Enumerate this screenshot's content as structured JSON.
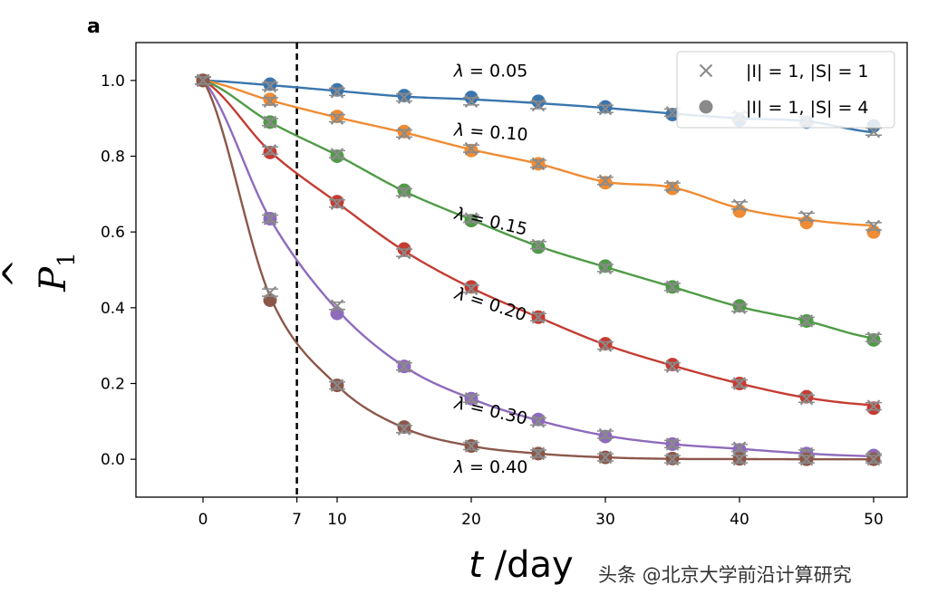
{
  "panel_label": "a",
  "watermark": "头条 @北京大学前沿计算研究",
  "chart_data": {
    "type": "line",
    "title": "",
    "xlabel": "t /day",
    "xlabel_var": "t",
    "xlabel_unit": " /day",
    "ylabel": "P̂1",
    "ylabel_main": "P",
    "ylabel_sub": "1",
    "xlim": [
      -5,
      52.5
    ],
    "ylim": [
      -0.1,
      1.1
    ],
    "xticks": [
      0,
      7,
      10,
      20,
      30,
      40,
      50
    ],
    "xtick_labels": [
      "0",
      "7",
      "10",
      "20",
      "30",
      "40",
      "50"
    ],
    "yticks": [
      0.0,
      0.2,
      0.4,
      0.6,
      0.8,
      1.0
    ],
    "ytick_labels": [
      "0.0",
      "0.2",
      "0.4",
      "0.6",
      "0.8",
      "1.0"
    ],
    "vline": {
      "x": 7,
      "style": "dashed"
    },
    "x_samples": [
      0,
      5,
      10,
      15,
      20,
      25,
      30,
      35,
      40,
      45,
      50
    ],
    "legend": {
      "placement": "top-right",
      "entries": [
        {
          "marker": "x",
          "label": "|I| = 1, |S| = 1"
        },
        {
          "marker": "circle",
          "label": "|I| = 1, |S| = 4"
        }
      ]
    },
    "series": [
      {
        "name": "λ = 0.05",
        "lambda": 0.05,
        "color": "#3a75ad",
        "line_end": 0.863,
        "circles": [
          1.0,
          0.99,
          0.975,
          0.96,
          0.955,
          0.945,
          0.93,
          0.91,
          0.895,
          0.89,
          0.88
        ],
        "crosses": [
          1.0,
          0.985,
          0.97,
          0.955,
          0.945,
          0.935,
          0.925,
          0.915,
          0.905,
          0.895,
          0.865
        ],
        "label_text": "λ = 0.05",
        "label_x": 18.7,
        "label_y": 1.01,
        "label_rotation": 0
      },
      {
        "name": "λ = 0.10",
        "lambda": 0.1,
        "color": "#ef8c34",
        "line_end": 0.617,
        "circles": [
          1.0,
          0.95,
          0.905,
          0.865,
          0.815,
          0.78,
          0.73,
          0.715,
          0.655,
          0.625,
          0.6
        ],
        "crosses": [
          1.0,
          0.945,
          0.9,
          0.86,
          0.82,
          0.78,
          0.735,
          0.72,
          0.67,
          0.64,
          0.615
        ],
        "label_text": "λ = 0.10",
        "label_x": 18.7,
        "label_y": 0.855,
        "label_rotation": 4
      },
      {
        "name": "λ = 0.15",
        "lambda": 0.15,
        "color": "#4f9b46",
        "line_end": 0.32,
        "circles": [
          1.0,
          0.89,
          0.8,
          0.71,
          0.63,
          0.56,
          0.51,
          0.455,
          0.405,
          0.365,
          0.315
        ],
        "crosses": [
          1.0,
          0.89,
          0.805,
          0.705,
          0.635,
          0.565,
          0.505,
          0.455,
          0.4,
          0.365,
          0.32
        ],
        "label_text": "λ = 0.15",
        "label_x": 18.7,
        "label_y": 0.635,
        "label_rotation": 13
      },
      {
        "name": "λ = 0.20",
        "lambda": 0.2,
        "color": "#c43c32",
        "line_end": 0.143,
        "circles": [
          1.0,
          0.81,
          0.68,
          0.555,
          0.455,
          0.375,
          0.305,
          0.25,
          0.2,
          0.165,
          0.135
        ],
        "crosses": [
          1.0,
          0.815,
          0.675,
          0.545,
          0.45,
          0.375,
          0.3,
          0.245,
          0.2,
          0.16,
          0.14
        ],
        "label_text": "λ = 0.20",
        "label_x": 18.7,
        "label_y": 0.425,
        "label_rotation": 18
      },
      {
        "name": "λ = 0.30",
        "lambda": 0.3,
        "color": "#8e6bbc",
        "line_end": 0.008,
        "circles": [
          1.0,
          0.635,
          0.385,
          0.245,
          0.16,
          0.105,
          0.06,
          0.04,
          0.025,
          0.015,
          0.01
        ],
        "crosses": [
          1.0,
          0.635,
          0.405,
          0.245,
          0.16,
          0.1,
          0.065,
          0.04,
          0.03,
          0.015,
          0.005
        ],
        "label_text": "λ = 0.30",
        "label_x": 18.7,
        "label_y": 0.135,
        "label_rotation": 13
      },
      {
        "name": "λ = 0.40",
        "lambda": 0.4,
        "color": "#8c574b",
        "line_end": 0.0,
        "circles": [
          1.0,
          0.42,
          0.195,
          0.085,
          0.035,
          0.015,
          0.005,
          0.002,
          0.001,
          0.0,
          0.0
        ],
        "crosses": [
          1.0,
          0.44,
          0.195,
          0.08,
          0.035,
          0.015,
          0.005,
          0.0,
          0.0,
          0.0,
          0.0
        ],
        "label_text": "λ = 0.40",
        "label_x": 18.7,
        "label_y": -0.035,
        "label_rotation": 0
      }
    ]
  }
}
